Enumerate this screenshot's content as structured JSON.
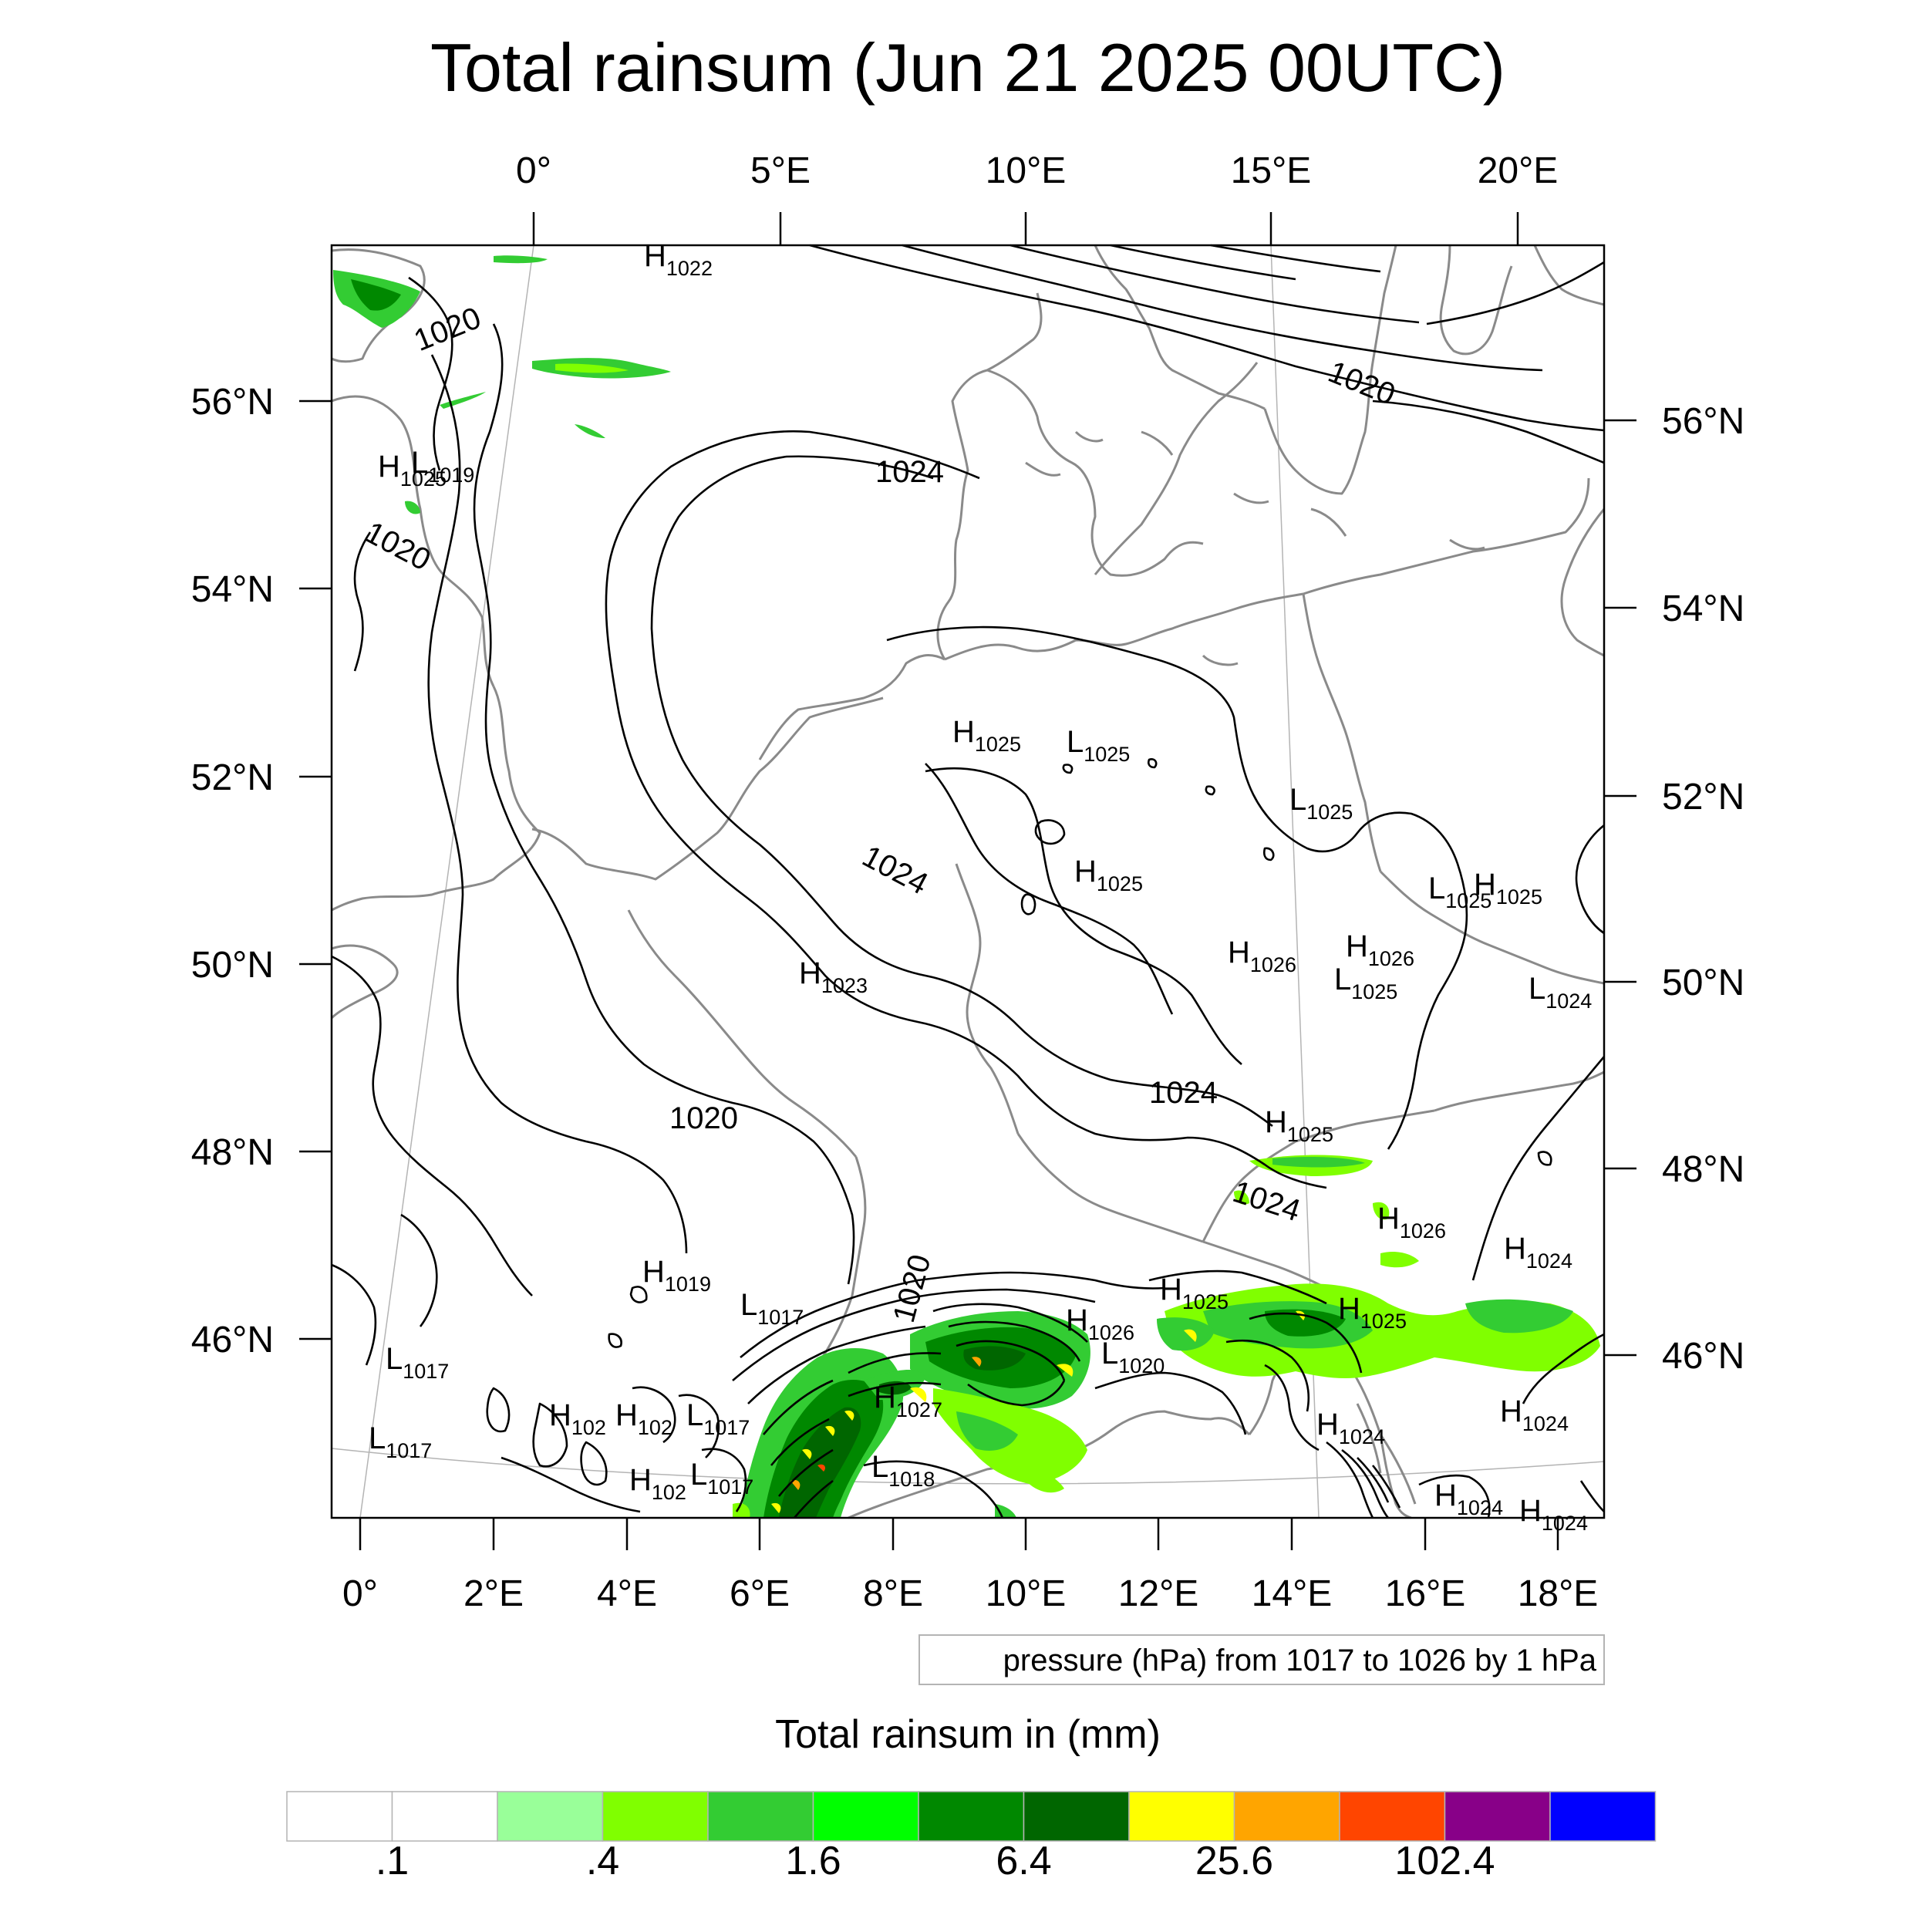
{
  "title": "Total rainsum (Jun 21 2025 00UTC)",
  "top_lon_labels": [
    "0°",
    "5°E",
    "10°E",
    "15°E",
    "20°E"
  ],
  "bottom_lon_labels": [
    "0°",
    "2°E",
    "4°E",
    "6°E",
    "8°E",
    "10°E",
    "12°E",
    "14°E",
    "16°E",
    "18°E"
  ],
  "left_lat_labels": [
    "56°N",
    "54°N",
    "52°N",
    "50°N",
    "48°N",
    "46°N"
  ],
  "right_lat_labels": [
    "56°N",
    "54°N",
    "52°N",
    "50°N",
    "48°N",
    "46°N"
  ],
  "contour_info": "pressure (hPa) from 1017 to 1026 by 1 hPa",
  "colorbar": {
    "title": "Total rainsum in (mm)",
    "colors": [
      "#ffffff",
      "#ffffff",
      "#99ff99",
      "#80ff00",
      "#33cc33",
      "#00ff00",
      "#008800",
      "#006600",
      "#ffff00",
      "#ffa500",
      "#ff4500",
      "#880088",
      "#0000ff"
    ],
    "labels": [
      ".1",
      ".4",
      "1.6",
      "6.4",
      "25.6",
      "102.4"
    ]
  },
  "isobar_labels": [
    "1020",
    "1020",
    "1024",
    "1020",
    "1024",
    "1020",
    "1024",
    "1024",
    "1020"
  ],
  "pressure_centers": [
    {
      "type": "H",
      "value": "1022"
    },
    {
      "type": "H",
      "value": "1025"
    },
    {
      "type": "L",
      "value": "1019"
    },
    {
      "type": "H",
      "value": "1025"
    },
    {
      "type": "L",
      "value": "1025"
    },
    {
      "type": "L",
      "value": "1025"
    },
    {
      "type": "H",
      "value": "1025"
    },
    {
      "type": "L",
      "value": "1025"
    },
    {
      "type": "H",
      "value": "1025"
    },
    {
      "type": "H",
      "value": "1026"
    },
    {
      "type": "H",
      "value": "1026"
    },
    {
      "type": "L",
      "value": "1025"
    },
    {
      "type": "L",
      "value": "1024"
    },
    {
      "type": "H",
      "value": "1023"
    },
    {
      "type": "H",
      "value": "1025"
    },
    {
      "type": "H",
      "value": "1026"
    },
    {
      "type": "H",
      "value": "1024"
    },
    {
      "type": "H",
      "value": "1019"
    },
    {
      "type": "L",
      "value": "1017"
    },
    {
      "type": "H",
      "value": "1025"
    },
    {
      "type": "H",
      "value": "1026"
    },
    {
      "type": "H",
      "value": "1025"
    },
    {
      "type": "L",
      "value": "1020"
    },
    {
      "type": "L",
      "value": "1017"
    },
    {
      "type": "H",
      "value": "102"
    },
    {
      "type": "H",
      "value": "102"
    },
    {
      "type": "L",
      "value": "1017"
    },
    {
      "type": "H",
      "value": "1027"
    },
    {
      "type": "H",
      "value": "1024"
    },
    {
      "type": "H",
      "value": "1024"
    },
    {
      "type": "L",
      "value": "1017"
    },
    {
      "type": "H",
      "value": "102"
    },
    {
      "type": "L",
      "value": "1017"
    },
    {
      "type": "L",
      "value": "1018"
    },
    {
      "type": "H",
      "value": "1024"
    },
    {
      "type": "H",
      "value": "1024"
    }
  ]
}
